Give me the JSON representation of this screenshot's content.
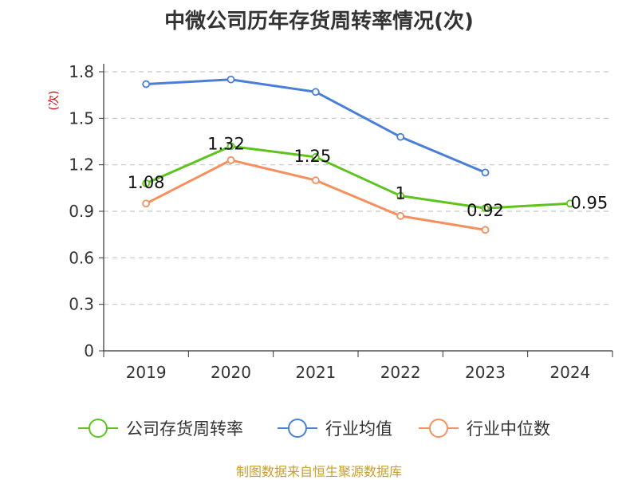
{
  "chart_data": {
    "type": "line",
    "title": "中微公司历年存货周转率情况(次)",
    "ylabel": "(次)",
    "xlabel": "",
    "categories": [
      "2019",
      "2020",
      "2021",
      "2022",
      "2023",
      "2024"
    ],
    "ylim": [
      0,
      1.8
    ],
    "yticks": [
      "0",
      "0.3",
      "0.6",
      "0.9",
      "1.2",
      "1.5",
      "1.8"
    ],
    "grid": true,
    "legend_position": "bottom",
    "series": [
      {
        "name": "公司存货周转率",
        "color": "#5ec31f",
        "values": [
          1.08,
          1.32,
          1.25,
          1.0,
          0.92,
          0.95
        ],
        "labels": [
          "1.08",
          "1.32",
          "1.25",
          "1",
          "0.92",
          "0.95"
        ]
      },
      {
        "name": "行业均值",
        "color": "#4a7fd8",
        "values": [
          1.72,
          1.75,
          1.67,
          1.38,
          1.15,
          null
        ]
      },
      {
        "name": "行业中位数",
        "color": "#f5905e",
        "values": [
          0.95,
          1.23,
          1.1,
          0.87,
          0.78,
          null
        ]
      }
    ],
    "source": "制图数据来自恒生聚源数据库"
  }
}
